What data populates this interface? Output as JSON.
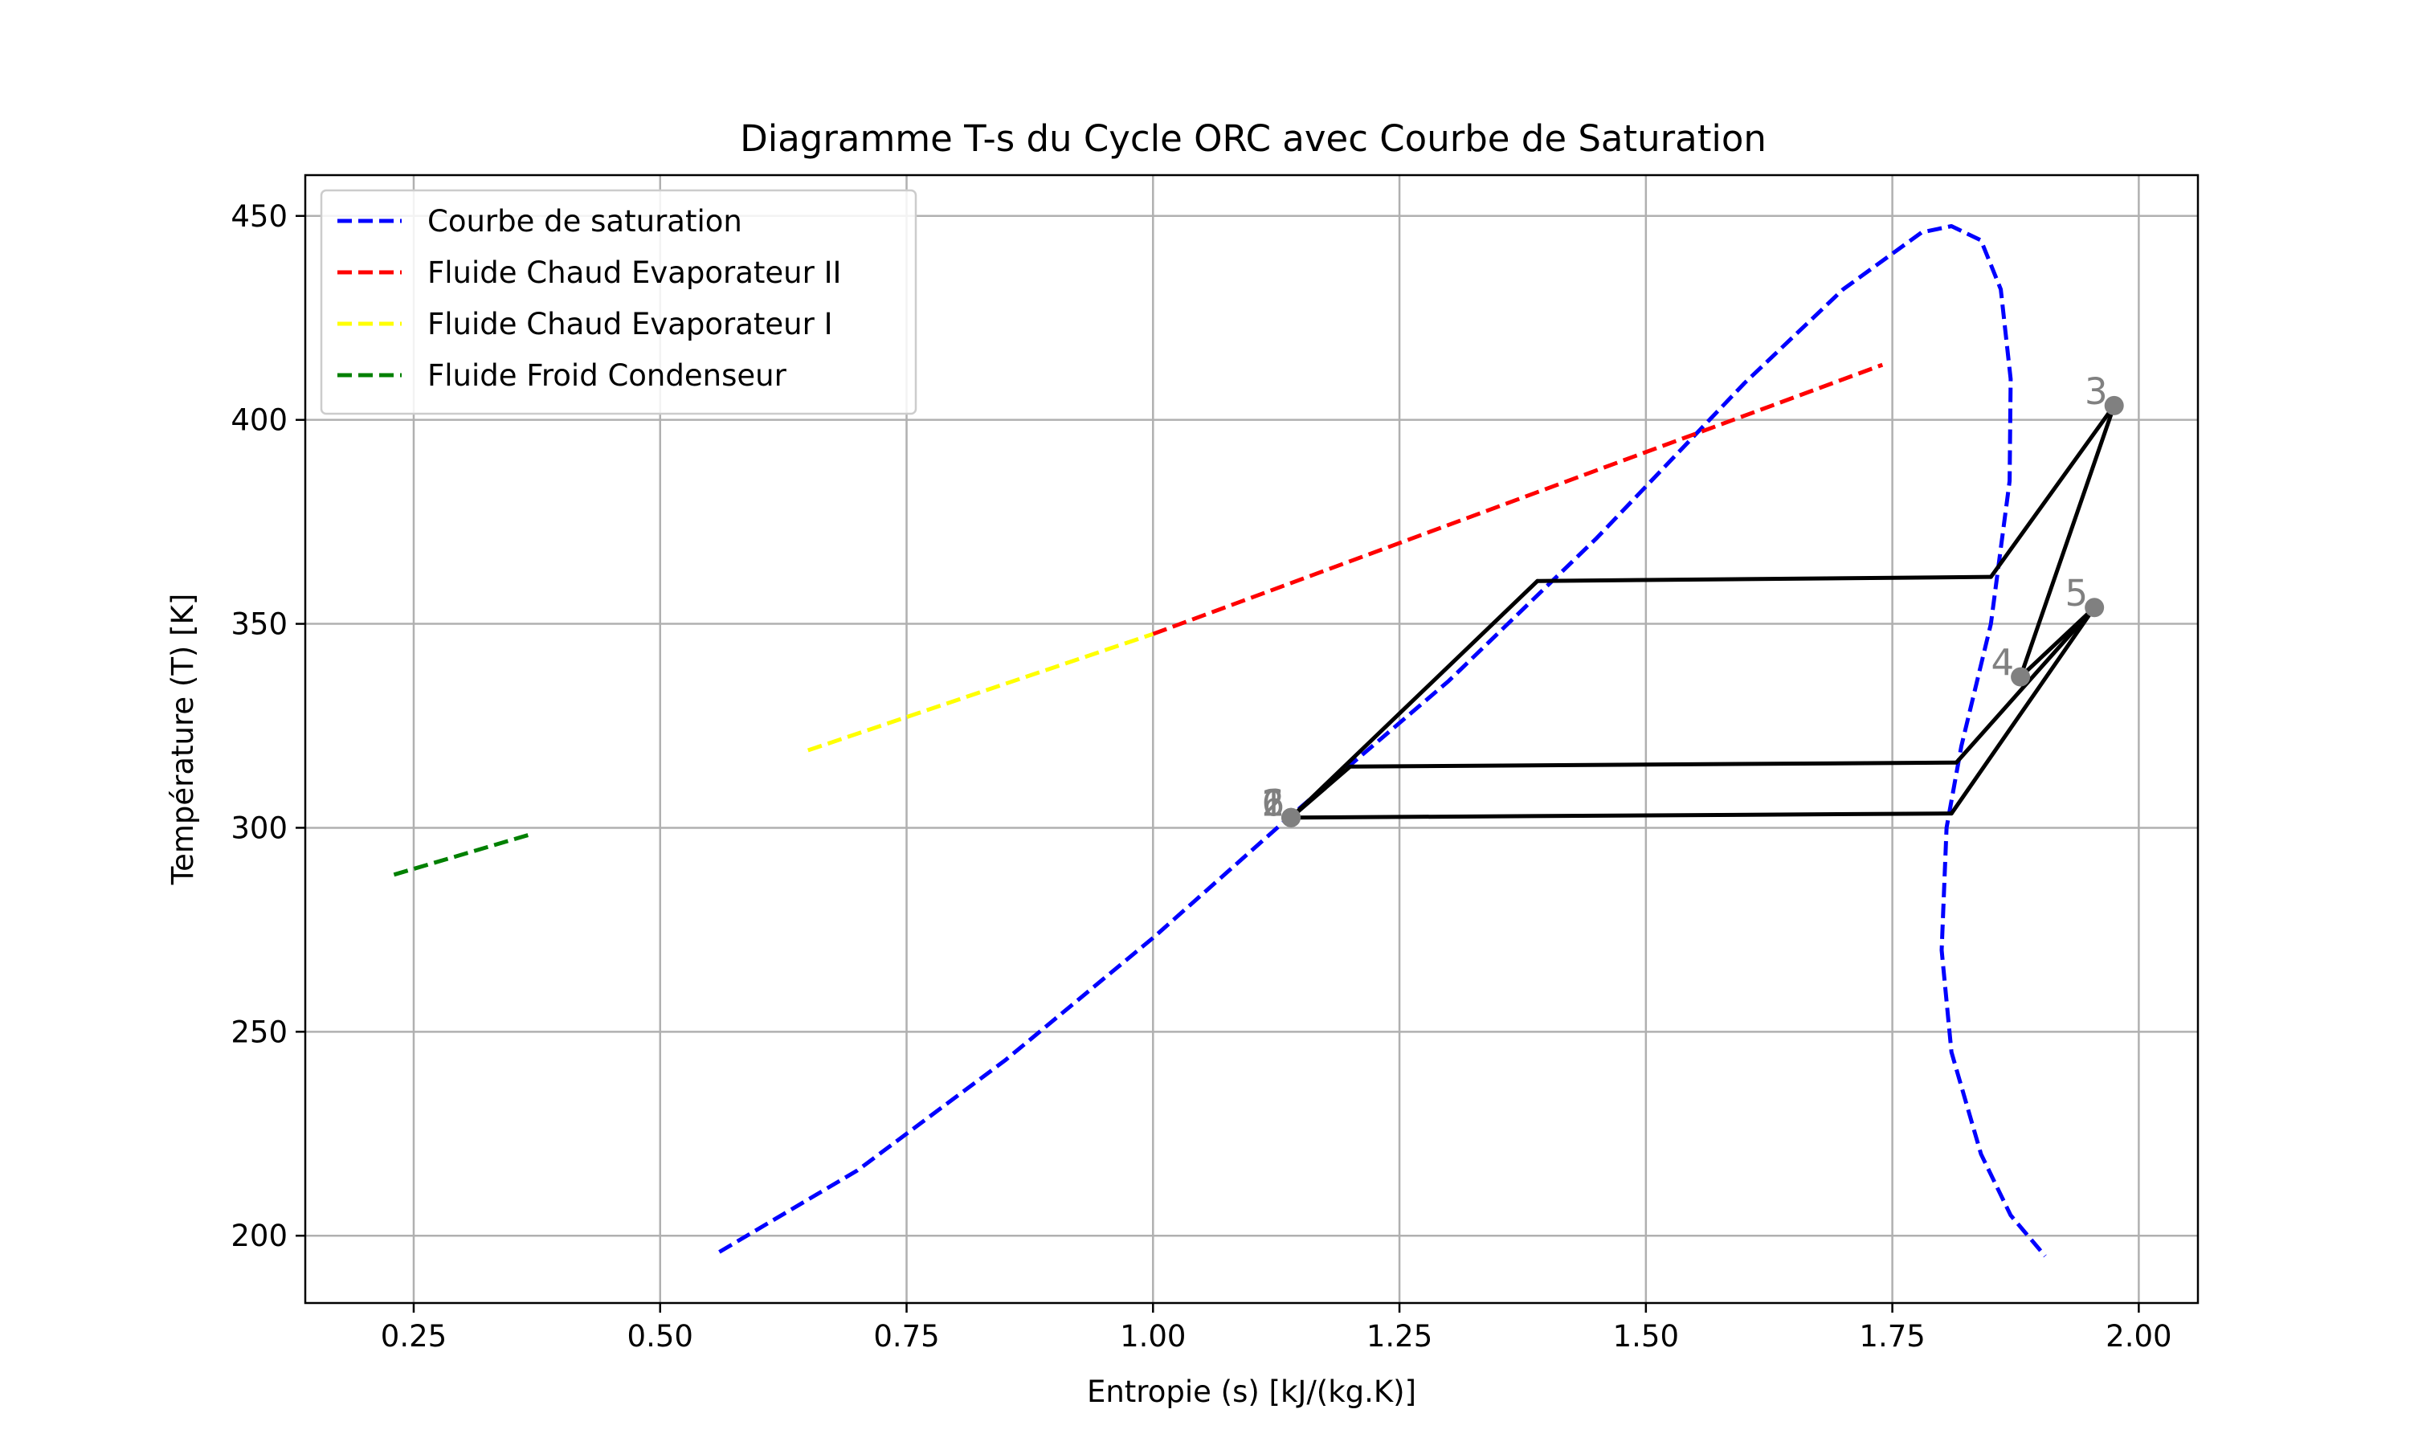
{
  "chart_data": {
    "type": "line",
    "title": "Diagramme T-s du Cycle ORC avec Courbe de Saturation",
    "xlabel": "Entropie (s) [kJ/(kg.K)]",
    "ylabel": "Température (T) [K]",
    "xlim": [
      0.14,
      2.06
    ],
    "ylim": [
      183.5,
      460
    ],
    "xticks": [
      0.25,
      0.5,
      0.75,
      1.0,
      1.25,
      1.5,
      1.75,
      2.0
    ],
    "xtick_labels": [
      "0.25",
      "0.50",
      "0.75",
      "1.00",
      "1.25",
      "1.50",
      "1.75",
      "2.00"
    ],
    "yticks": [
      200,
      250,
      300,
      350,
      400,
      450
    ],
    "ytick_labels": [
      "200",
      "250",
      "300",
      "350",
      "400",
      "450"
    ],
    "grid": true,
    "legend_position": "top-left",
    "series": [
      {
        "name": "Courbe de saturation",
        "color": "#0000ff",
        "style": "dashed",
        "x": [
          0.56,
          0.7,
          0.85,
          1.0,
          1.14,
          1.3,
          1.45,
          1.6,
          1.7,
          1.78,
          1.81,
          1.84,
          1.86,
          1.87,
          1.869,
          1.85,
          1.82,
          1.805,
          1.8,
          1.81,
          1.84,
          1.87,
          1.905
        ],
        "y": [
          196,
          216,
          243,
          273,
          303,
          336,
          371,
          409,
          432,
          446,
          447.5,
          444,
          432,
          410,
          385,
          350,
          320,
          300,
          270,
          245,
          220,
          205,
          195
        ]
      },
      {
        "name": "Fluide Chaud Evaporateur II",
        "color": "#ff0000",
        "style": "dashed",
        "x": [
          1.0,
          1.74
        ],
        "y": [
          347.5,
          413.5
        ]
      },
      {
        "name": "Fluide Chaud Evaporateur I",
        "color": "#ffff00",
        "style": "dashed",
        "x": [
          0.65,
          1.0
        ],
        "y": [
          319,
          347.5
        ]
      },
      {
        "name": "Fluide Froid Condenseur",
        "color": "#008000",
        "style": "dashed",
        "x": [
          0.23,
          0.37
        ],
        "y": [
          288.5,
          298.5
        ]
      }
    ],
    "cycle_lines": {
      "color": "#000000",
      "segments": [
        {
          "x": [
            1.14,
            1.39
          ],
          "y": [
            302.5,
            360.5
          ]
        },
        {
          "x": [
            1.39,
            1.85
          ],
          "y": [
            360.5,
            361.5
          ]
        },
        {
          "x": [
            1.85,
            1.975
          ],
          "y": [
            361.5,
            403.5
          ]
        },
        {
          "x": [
            1.975,
            1.88
          ],
          "y": [
            403.5,
            337
          ]
        },
        {
          "x": [
            1.88,
            1.955
          ],
          "y": [
            337,
            354
          ]
        },
        {
          "x": [
            1.955,
            1.81
          ],
          "y": [
            354,
            303.5
          ]
        },
        {
          "x": [
            1.81,
            1.14
          ],
          "y": [
            303.5,
            302.5
          ]
        },
        {
          "x": [
            1.955,
            1.815
          ],
          "y": [
            354,
            316
          ]
        },
        {
          "x": [
            1.815,
            1.2
          ],
          "y": [
            316,
            315
          ]
        },
        {
          "x": [
            1.2,
            1.14
          ],
          "y": [
            315,
            302.5
          ]
        }
      ]
    },
    "points": [
      {
        "label": "1",
        "x": 1.14,
        "y": 302.5
      },
      {
        "label": "2",
        "x": 1.14,
        "y": 302.5
      },
      {
        "label": "3",
        "x": 1.975,
        "y": 403.5
      },
      {
        "label": "4",
        "x": 1.88,
        "y": 337
      },
      {
        "label": "5",
        "x": 1.955,
        "y": 354
      },
      {
        "label": "6",
        "x": 1.14,
        "y": 302.5
      }
    ],
    "point_color": "#808080"
  }
}
